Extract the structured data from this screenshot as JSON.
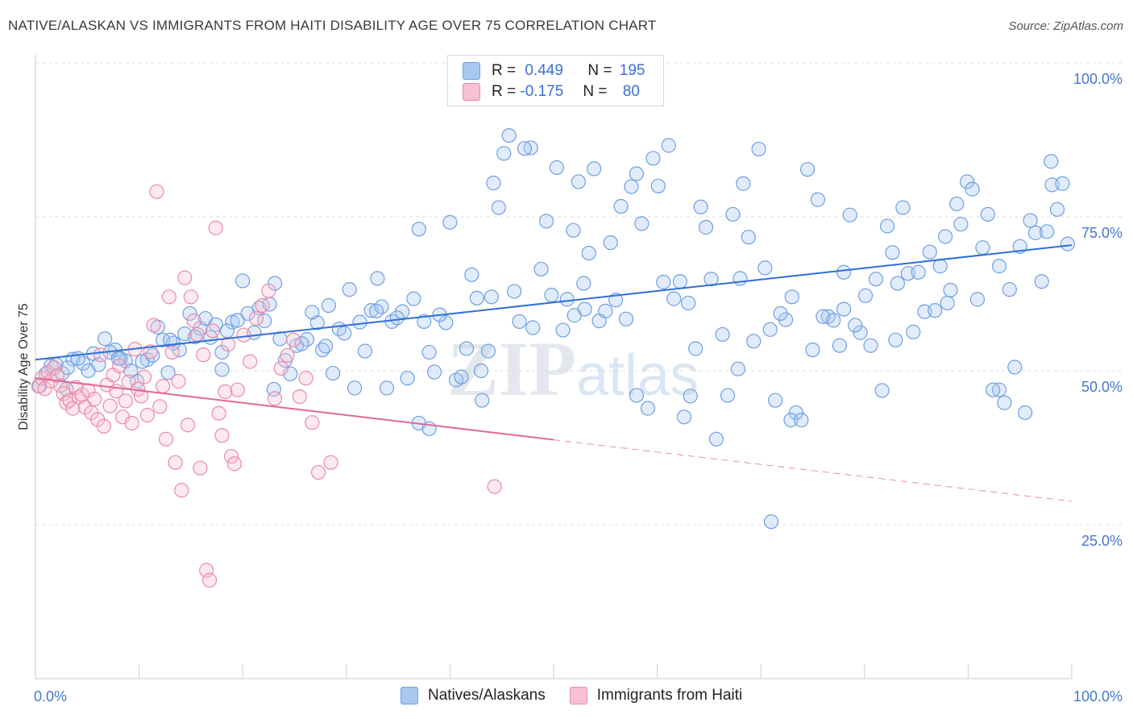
{
  "title": "NATIVE/ALASKAN VS IMMIGRANTS FROM HAITI DISABILITY AGE OVER 75 CORRELATION CHART",
  "source": "Source: ZipAtlas.com",
  "legend": {
    "r_label": "R =",
    "n_label": "N =",
    "rows": [
      {
        "r": "0.449",
        "n": "195",
        "color": "#a8c8f0",
        "border": "#6e9fe0"
      },
      {
        "r": "-0.175",
        "n": "80",
        "color": "#f8c0d0",
        "border": "#e88aa8"
      }
    ]
  },
  "bottom_legend": [
    "Natives/Alaskans",
    "Immigrants from Haiti"
  ],
  "chart_data": {
    "type": "scatter",
    "xlabel": "",
    "ylabel": "Disability Age Over 75",
    "xlim": [
      0,
      100
    ],
    "ylim": [
      0,
      100
    ],
    "x_tick_labels": [
      "0.0%",
      "100.0%"
    ],
    "y_tick_labels": [
      "25.0%",
      "50.0%",
      "75.0%",
      "100.0%"
    ],
    "y_ticks": [
      25,
      50,
      75,
      100
    ],
    "grid": true,
    "series": [
      {
        "name": "Natives/Alaskans",
        "color": "#6e9fe0",
        "fill": "rgba(168,200,240,0.35)",
        "trend": {
          "x0": 0,
          "y0": 51.8,
          "x1": 100,
          "y1": 70.4
        },
        "x": [
          0.4,
          1.5,
          2.6,
          3.6,
          4.6,
          5.6,
          6.7,
          7.7,
          8.7,
          9.8,
          10.8,
          11.8,
          12.8,
          13.9,
          14.9,
          15.9,
          16.9,
          18,
          19,
          20,
          21.1,
          22.1,
          23.1,
          24.1,
          25.2,
          26.2,
          27.2,
          28.3,
          29.3,
          30.3,
          31.3,
          32.4,
          33.4,
          34.4,
          35.4,
          36.5,
          37.5,
          38.5,
          39.6,
          40.6,
          41.6,
          42.6,
          43.7,
          44.7,
          45.7,
          46.7,
          47.8,
          48.8,
          49.8,
          50.9,
          51.9,
          52.9,
          53.9,
          55,
          56,
          57,
          58,
          59.1,
          60.1,
          61.1,
          62.2,
          63.2,
          64.2,
          65.2,
          66.3,
          67.3,
          68.3,
          69.3,
          70.4,
          71.4,
          72.4,
          73.4,
          74.5,
          75.5,
          76.5,
          77.6,
          78.6,
          79.6,
          80.6,
          81.7,
          82.7,
          83.7,
          84.7,
          85.8,
          86.8,
          87.8,
          88.9,
          89.9,
          90.9,
          91.9,
          93,
          94,
          95,
          96,
          97.1,
          98.1,
          99.1,
          1,
          2,
          3.1,
          4.1,
          5.1,
          6.1,
          7.2,
          8.2,
          9.2,
          10.3,
          11.3,
          12.3,
          13.3,
          14.4,
          15.4,
          16.4,
          17.4,
          18.5,
          19.5,
          20.5,
          21.6,
          22.6,
          23.6,
          24.6,
          25.7,
          26.7,
          27.7,
          28.7,
          29.8,
          30.8,
          31.8,
          32.9,
          33.9,
          34.9,
          35.9,
          37,
          38,
          39,
          40,
          41.1,
          42.1,
          43.1,
          44.2,
          45.2,
          46.2,
          47.2,
          48.3,
          49.3,
          50.3,
          51.3,
          52.4,
          53.4,
          54.4,
          55.5,
          56.5,
          57.5,
          58.5,
          59.6,
          60.6,
          61.6,
          62.6,
          63.7,
          64.7,
          65.7,
          66.8,
          67.8,
          68.8,
          69.8,
          70.9,
          71.9,
          72.9,
          73.9,
          75,
          76,
          77,
          78,
          79.1,
          80.1,
          81.1,
          82.2,
          83.2,
          84.2,
          85.2,
          86.3,
          87.3,
          88.3,
          89.3,
          90.4,
          91.4,
          92.4,
          93.5,
          94.5,
          95.5,
          96.5,
          97.6,
          98.6,
          99.6,
          3,
          8,
          13,
          18,
          23,
          28,
          33,
          38,
          43,
          48,
          53,
          58,
          63,
          68,
          73,
          78,
          83,
          88,
          93,
          98,
          52,
          37,
          44,
          71
        ],
        "y": [
          47.5,
          50.8,
          49.6,
          51.9,
          51.2,
          52.8,
          55.2,
          53.4,
          51.6,
          48.3,
          51.8,
          57.1,
          49.7,
          53.4,
          59.3,
          56.9,
          55.4,
          50.2,
          57.9,
          64.6,
          56.2,
          58.1,
          64.2,
          51.7,
          54.1,
          55.1,
          57.8,
          60.6,
          56.8,
          63.2,
          57.9,
          59.8,
          60.4,
          58,
          59.6,
          61.7,
          58,
          49.8,
          57.8,
          48.5,
          53.6,
          61.8,
          53.2,
          76.5,
          88.2,
          58,
          86.2,
          66.5,
          62.3,
          56.6,
          72.8,
          64.2,
          82.8,
          59.7,
          61.5,
          58.4,
          82,
          43.9,
          80,
          86.6,
          64.5,
          45.9,
          76.6,
          64.9,
          55.9,
          75.4,
          80.4,
          54.8,
          66.7,
          45.2,
          58.3,
          43.2,
          82.7,
          77.8,
          58.8,
          54.1,
          75.3,
          56.2,
          54.1,
          46.8,
          69.2,
          76.5,
          56.3,
          59.6,
          59.8,
          71.8,
          77.1,
          80.7,
          61.6,
          75.4,
          46.9,
          63.2,
          70.2,
          74.4,
          64.5,
          80.2,
          80.4,
          49.5,
          51,
          50.5,
          52,
          50,
          51,
          53,
          52,
          50,
          51.5,
          52.5,
          55,
          54.5,
          56,
          55.5,
          58.5,
          57.5,
          56.5,
          58.2,
          59.3,
          60.2,
          60.8,
          55.2,
          49.5,
          54.4,
          59.5,
          53.4,
          49.6,
          56.1,
          47.2,
          53.2,
          59.7,
          47.2,
          58.6,
          48.8,
          41.5,
          40.6,
          59.1,
          74.1,
          49,
          65.6,
          45.2,
          80.5,
          85.3,
          62.9,
          86.1,
          98.5,
          74.3,
          83,
          61.6,
          80.7,
          69.1,
          58.1,
          70.8,
          76.7,
          79.9,
          73.9,
          84.5,
          64.4,
          61.7,
          42.5,
          53.6,
          73.3,
          38.9,
          46,
          50.3,
          71.7,
          86,
          56.7,
          59.3,
          42,
          42,
          53.4,
          58.8,
          58.2,
          60,
          57.4,
          62.2,
          64.9,
          73.5,
          64.2,
          65.8,
          66,
          69.3,
          67,
          63.1,
          73.8,
          79.5,
          70,
          46.9,
          44.8,
          50.6,
          43.2,
          72.4,
          72.6,
          76.2,
          70.6,
          47,
          52,
          55,
          53,
          47,
          54,
          65,
          53,
          50,
          57,
          60,
          46,
          61,
          65,
          62,
          66,
          55,
          61,
          67,
          84,
          59,
          73,
          62,
          25.5
        ]
      },
      {
        "name": "Immigrants from Haiti",
        "color": "#e88aa8",
        "fill": "rgba(248,192,208,0.35)",
        "trend": {
          "x0": 0,
          "y0": 48.8,
          "x1": 50,
          "y1": 38.8
        },
        "trend_dashed": {
          "x0": 50,
          "y0": 38.8,
          "x1": 100,
          "y1": 28.8
        },
        "x": [
          0.3,
          0.6,
          0.9,
          1.2,
          1.5,
          1.8,
          2.1,
          2.4,
          2.7,
          3,
          3.3,
          3.6,
          3.9,
          4.2,
          4.5,
          4.8,
          5.1,
          5.4,
          5.7,
          6,
          6.3,
          6.6,
          6.9,
          7.2,
          7.5,
          7.8,
          8.1,
          8.4,
          8.7,
          9,
          9.3,
          9.6,
          9.9,
          10.2,
          10.5,
          10.8,
          11.1,
          11.4,
          11.7,
          12,
          12.3,
          12.6,
          12.9,
          13.2,
          13.5,
          13.8,
          14.1,
          14.4,
          14.7,
          15,
          15.3,
          15.6,
          15.9,
          16.2,
          16.5,
          16.8,
          17.1,
          17.4,
          17.7,
          18,
          18.3,
          18.6,
          18.9,
          19.2,
          19.5,
          20.1,
          20.7,
          21.3,
          21.9,
          22.5,
          23.1,
          23.7,
          24.3,
          24.9,
          25.5,
          26.1,
          26.7,
          27.3,
          28.5,
          44.3
        ],
        "y": [
          47.5,
          48.8,
          47.1,
          49.8,
          48.3,
          50.5,
          49.2,
          47.6,
          46.3,
          44.8,
          45.2,
          43.9,
          47.3,
          45.7,
          46.1,
          44.1,
          46.8,
          43.2,
          45.4,
          42.1,
          52.6,
          41,
          47.7,
          44.3,
          49.3,
          46.7,
          50.8,
          42.5,
          45.1,
          48.2,
          41.5,
          53.5,
          47,
          45.9,
          49,
          42.8,
          53.1,
          57.4,
          79.1,
          44.2,
          47.5,
          38.9,
          62,
          53,
          35.1,
          48.3,
          30.6,
          65.1,
          41.2,
          62,
          58.1,
          55.9,
          34.2,
          52.6,
          17.6,
          16,
          56.5,
          73.2,
          43.1,
          39.5,
          46.6,
          54.3,
          36.1,
          34.9,
          46.9,
          55.8,
          51.5,
          58.5,
          60.6,
          63,
          45.5,
          50.4,
          52.5,
          55,
          45.8,
          48.8,
          41.6,
          33.5,
          35.1,
          31.2
        ]
      }
    ]
  }
}
